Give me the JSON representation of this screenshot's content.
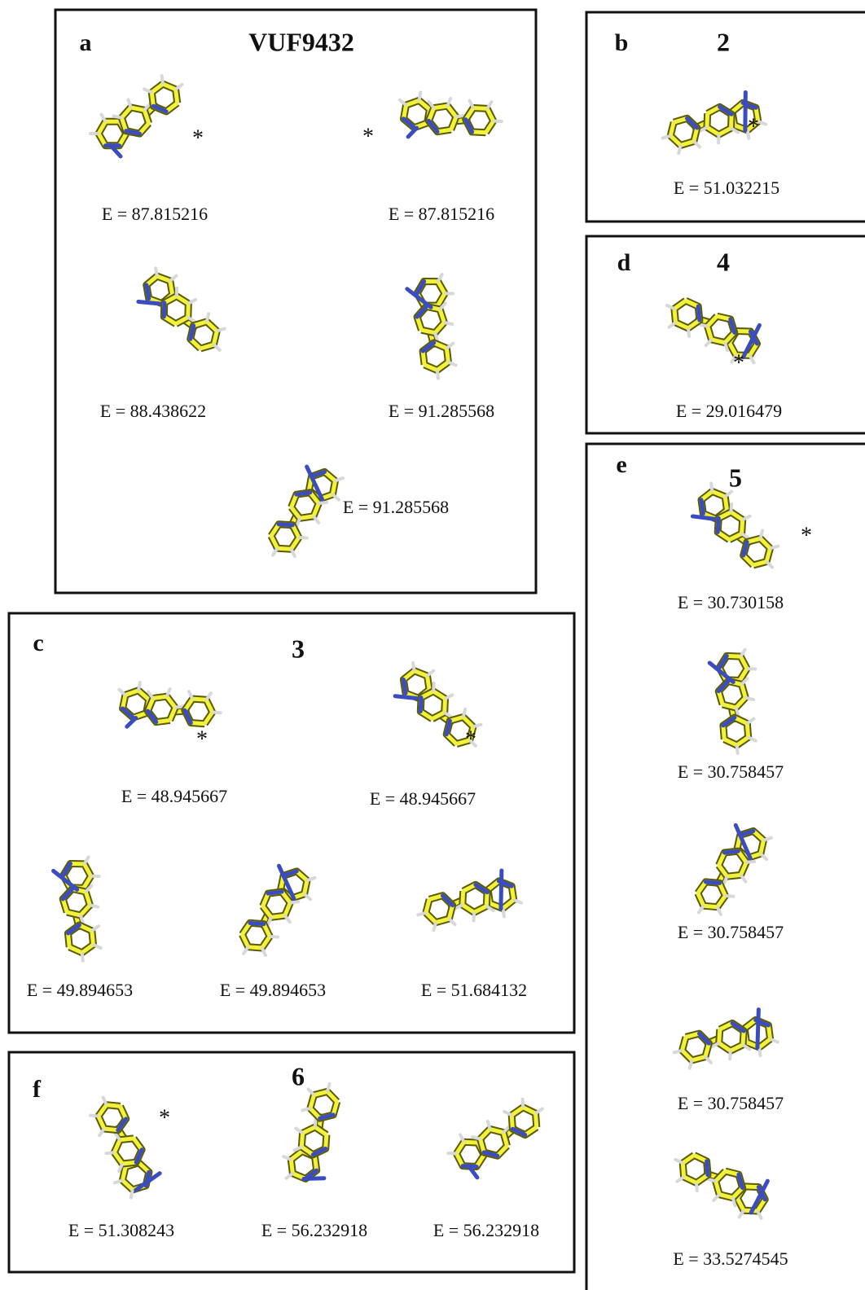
{
  "panels": [
    {
      "letter": "a",
      "title": "VUF9432",
      "conformers": [
        {
          "energy": "E = 87.815216",
          "marker": "*"
        },
        {
          "energy": "E = 87.815216",
          "marker": "*"
        },
        {
          "energy": "E = 88.438622"
        },
        {
          "energy": "E = 91.285568"
        },
        {
          "energy": "E = 91.285568"
        }
      ]
    },
    {
      "letter": "b",
      "title": "2",
      "conformers": [
        {
          "energy": "E = 51.032215",
          "marker": "*"
        }
      ]
    },
    {
      "letter": "c",
      "title": "3",
      "conformers": [
        {
          "energy": "E = 48.945667",
          "marker": "*"
        },
        {
          "energy": "E = 48.945667",
          "marker": "*"
        },
        {
          "energy": "E = 49.894653"
        },
        {
          "energy": "E = 49.894653"
        },
        {
          "energy": "E = 51.684132"
        }
      ]
    },
    {
      "letter": "d",
      "title": "4",
      "conformers": [
        {
          "energy": "E = 29.016479",
          "marker": "*"
        }
      ]
    },
    {
      "letter": "e",
      "title": "5",
      "conformers": [
        {
          "energy": "E = 30.730158",
          "marker": "*"
        },
        {
          "energy": "E = 30.758457"
        },
        {
          "energy": "E = 30.758457"
        },
        {
          "energy": "E = 30.758457"
        },
        {
          "energy": "E = 33.5274545"
        }
      ]
    },
    {
      "letter": "f",
      "title": "6",
      "conformers": [
        {
          "energy": "E = 51.308243",
          "marker": "*"
        },
        {
          "energy": "E = 56.232918"
        },
        {
          "energy": "E = 56.232918"
        }
      ]
    }
  ]
}
